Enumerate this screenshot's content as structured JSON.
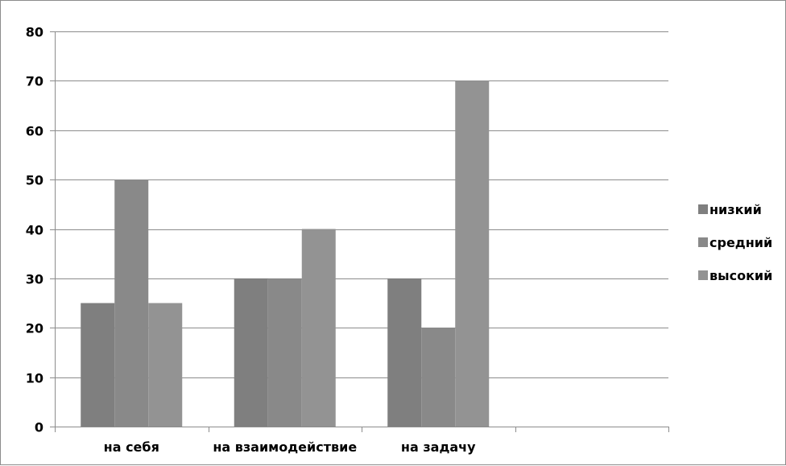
{
  "chart_data": {
    "type": "bar",
    "title": "",
    "xlabel": "",
    "ylabel": "",
    "categories": [
      "на себя",
      "на взаимодействие",
      "на задачу",
      ""
    ],
    "series": [
      {
        "name": "низкий",
        "values": [
          25,
          30,
          30,
          null
        ],
        "color": "#7f7f7f"
      },
      {
        "name": "средний",
        "values": [
          50,
          30,
          20,
          null
        ],
        "color": "#898989"
      },
      {
        "name": "высокий",
        "values": [
          25,
          40,
          70,
          null
        ],
        "color": "#939393"
      }
    ],
    "ylim": [
      0,
      80
    ],
    "yticks": [
      "0",
      "10",
      "20",
      "30",
      "40",
      "50",
      "60",
      "70",
      "80"
    ],
    "grid": true,
    "legend_position": "right"
  }
}
